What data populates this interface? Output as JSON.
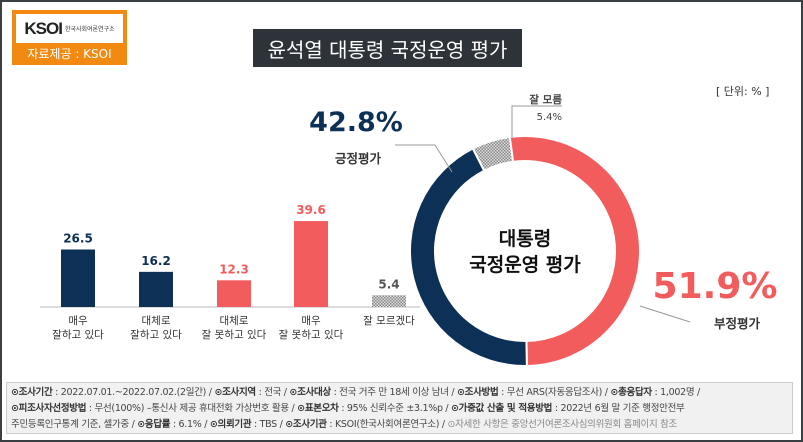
{
  "logo": {
    "brand": "KSOI",
    "brand_sub": "한국사회여론연구소",
    "caption": "자료제공 : KSOI"
  },
  "title": "윤석열 대통령 국정운영 평가",
  "unit": "[ 단위: % ]",
  "colors": {
    "navy": "#0d3057",
    "red": "#f25c5c",
    "gray": "#b0b0b0",
    "orange": "#f28a12"
  },
  "chart_data": [
    {
      "type": "bar",
      "categories": [
        "매우 잘하고 있다",
        "대체로 잘하고 있다",
        "대체로 잘 못하고 있다",
        "매우 잘 못하고 있다",
        "잘 모르겠다"
      ],
      "category_lines": [
        [
          "매우",
          "잘하고 있다"
        ],
        [
          "대체로",
          "잘하고 있다"
        ],
        [
          "대체로",
          "잘 못하고 있다"
        ],
        [
          "매우",
          "잘 못하고 있다"
        ],
        [
          "잘 모르겠다"
        ]
      ],
      "values": [
        26.5,
        16.2,
        12.3,
        39.6,
        5.4
      ],
      "labels": [
        "26.5",
        "16.2",
        "12.3",
        "39.6",
        "5.4"
      ],
      "bar_colors": [
        "#0d3057",
        "#0d3057",
        "#f25c5c",
        "#f25c5c",
        "hatched-gray"
      ]
    },
    {
      "type": "pie",
      "donut": true,
      "center_label": [
        "대통령",
        "국정운영 평가"
      ],
      "slices": [
        {
          "name": "잘 모름",
          "value": 5.4,
          "label": "5.4%",
          "color": "#b0b0b0"
        },
        {
          "name": "부정평가",
          "value": 51.9,
          "label": "51.9%",
          "color": "#f25c5c"
        },
        {
          "name": "긍정평가",
          "value": 42.8,
          "label": "42.8%",
          "color": "#0d3057"
        }
      ]
    }
  ],
  "footer": [
    [
      {
        "k": "⊙조사기간",
        "v": " : 2022.07.01.~2022.07.02.(2일간) / "
      },
      {
        "k": "⊙조사지역",
        "v": " : 전국 / "
      },
      {
        "k": "⊙조사대상",
        "v": " : 전국 거주 만 18세 이상 남녀 / "
      },
      {
        "k": "⊙조사방법",
        "v": " : 무선 ARS(자동응답조사) / "
      },
      {
        "k": "⊙총응답자",
        "v": " : 1,002명 /"
      }
    ],
    [
      {
        "k": "⊙피조사자선정방법",
        "v": " : 무선(100%) –통신사 제공 휴대전화 가상번호 활용 / "
      },
      {
        "k": "⊙표본오차",
        "v": " : 95% 신뢰수준 ±3.1%p / "
      },
      {
        "k": "⊙가중값 산출 및 적용방법",
        "v": " : 2022년 6월 말 기준 행정안전부"
      }
    ],
    [
      {
        "k": "",
        "v": "주민등록인구통계 기준, 셀가중 / "
      },
      {
        "k": "⊙응답률",
        "v": " : 6.1% / "
      },
      {
        "k": "⊙의뢰기관",
        "v": " : TBS / "
      },
      {
        "k": "⊙조사기관",
        "v": " : KSOI(한국사회여론연구소) / "
      },
      {
        "k": "",
        "v": "⊙자세한 사항은 중앙선거여론조사심의위원회 홈페이지 참조",
        "muted": true
      }
    ]
  ]
}
